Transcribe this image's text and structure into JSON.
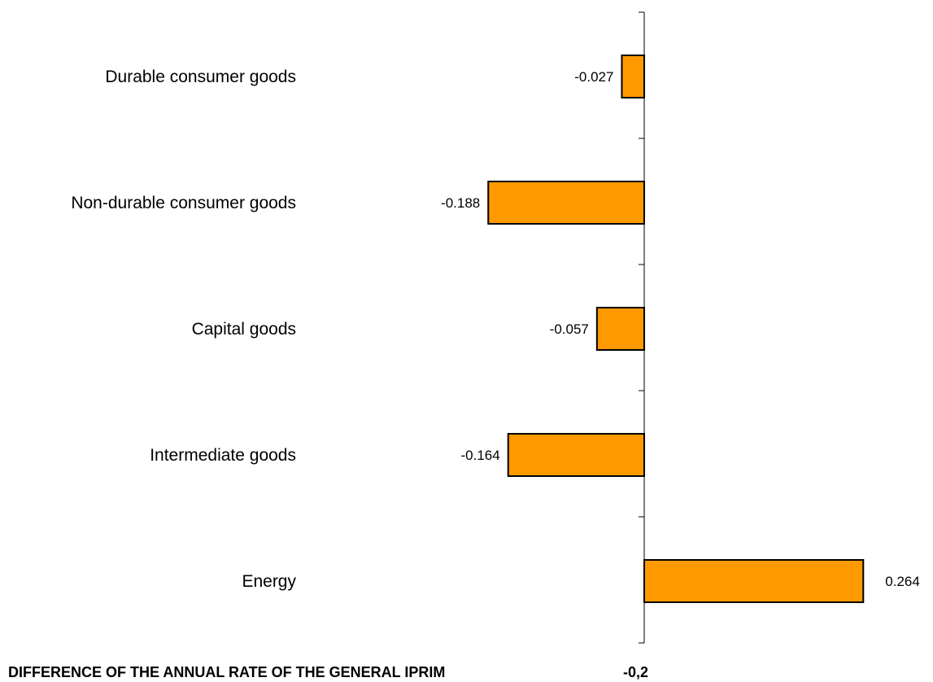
{
  "chart_data": {
    "type": "bar",
    "orientation": "horizontal",
    "categories": [
      "Durable consumer goods",
      "Non-durable consumer goods",
      "Capital goods",
      "Intermediate goods",
      "Energy"
    ],
    "values": [
      -0.027,
      -0.188,
      -0.057,
      -0.164,
      0.264
    ],
    "value_labels": [
      "-0.027",
      "-0.188",
      "-0.057",
      "-0.164",
      "0.264"
    ],
    "footer_text": "DIFFERENCE OF THE ANNUAL RATE OF THE GENERAL IPRIM",
    "footer_value": "-0,2",
    "bar_color": "#FF9900",
    "bar_edge_color": "#000000",
    "grid": false,
    "legend": "none"
  }
}
